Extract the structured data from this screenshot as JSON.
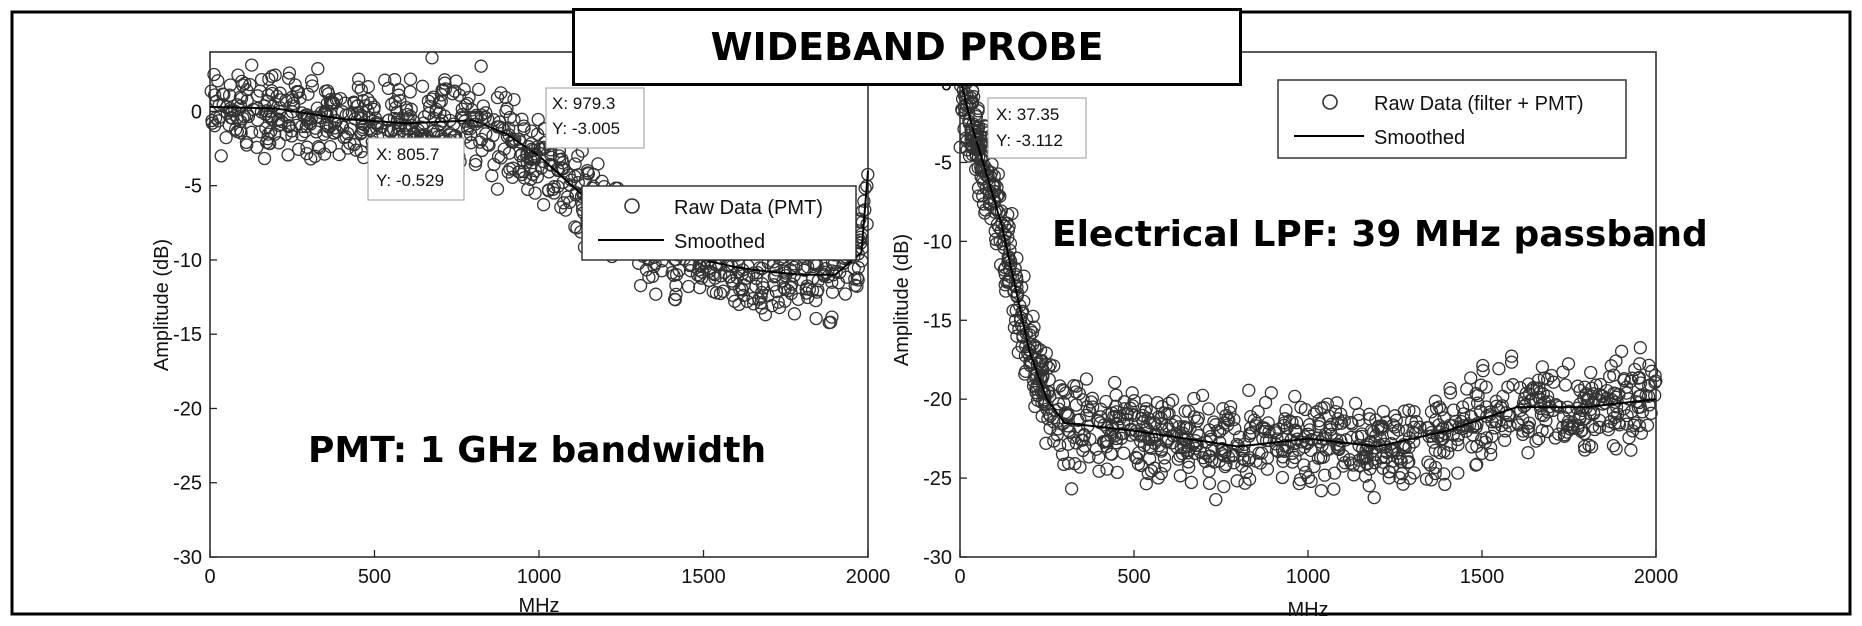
{
  "title": "WIDEBAND PROBE",
  "chart_data": [
    {
      "type": "scatter",
      "xlabel": "MHz",
      "ylabel": "Amplitude (dB)",
      "xlim": [
        0,
        2000
      ],
      "ylim": [
        -30,
        4
      ],
      "xticks": [
        0,
        500,
        1000,
        1500,
        2000
      ],
      "yticks": [
        0,
        -5,
        -10,
        -15,
        -20,
        -25,
        -30
      ],
      "grid": false,
      "legend_position": "right-middle",
      "legend": [
        "Raw Data (PMT)",
        "Smoothed"
      ],
      "annotation": "PMT: 1 GHz bandwidth",
      "datatips": [
        {
          "x": 805.7,
          "y": -0.529,
          "x_label": "X: 805.7",
          "y_label": "Y: -0.529"
        },
        {
          "x": 979.3,
          "y": -3.005,
          "x_label": "X: 979.3",
          "y_label": "Y: -3.005"
        }
      ],
      "raw_trend": [
        [
          0,
          0.3
        ],
        [
          200,
          0.2
        ],
        [
          400,
          -0.5
        ],
        [
          600,
          -0.8
        ],
        [
          800,
          -0.6
        ],
        [
          900,
          -1.5
        ],
        [
          1000,
          -3.0
        ],
        [
          1100,
          -5.0
        ],
        [
          1200,
          -7.0
        ],
        [
          1300,
          -8.0
        ],
        [
          1400,
          -9.5
        ],
        [
          1500,
          -10.0
        ],
        [
          1600,
          -10.5
        ],
        [
          1700,
          -10.8
        ],
        [
          1800,
          -11.0
        ],
        [
          1900,
          -11.0
        ],
        [
          1980,
          -9.5
        ],
        [
          2000,
          -4.0
        ]
      ],
      "scatter_spread_db": 2.5
    },
    {
      "type": "scatter",
      "xlabel": "MHz",
      "ylabel": "Amplitude (dB)",
      "xlim": [
        0,
        2000
      ],
      "ylim": [
        -30,
        2
      ],
      "xticks": [
        0,
        500,
        1000,
        1500,
        2000
      ],
      "yticks": [
        0,
        -5,
        -10,
        -15,
        -20,
        -25,
        -30
      ],
      "grid": false,
      "legend_position": "top-right",
      "legend": [
        "Raw Data (filter + PMT)",
        "Smoothed"
      ],
      "annotation": "Electrical LPF: 39 MHz passband",
      "datatips": [
        {
          "x": 37.35,
          "y": -3.112,
          "x_label": "X: 37.35",
          "y_label": "Y: -3.112"
        }
      ],
      "raw_trend": [
        [
          0,
          0.5
        ],
        [
          20,
          -1.5
        ],
        [
          40,
          -3.1
        ],
        [
          80,
          -6.0
        ],
        [
          120,
          -9.0
        ],
        [
          160,
          -13.0
        ],
        [
          200,
          -17.0
        ],
        [
          250,
          -20.0
        ],
        [
          300,
          -21.5
        ],
        [
          500,
          -22.0
        ],
        [
          800,
          -23.0
        ],
        [
          1000,
          -22.5
        ],
        [
          1200,
          -23.0
        ],
        [
          1400,
          -22.0
        ],
        [
          1600,
          -20.5
        ],
        [
          1800,
          -20.5
        ],
        [
          2000,
          -20.0
        ]
      ],
      "scatter_spread_db": 2.5
    }
  ]
}
